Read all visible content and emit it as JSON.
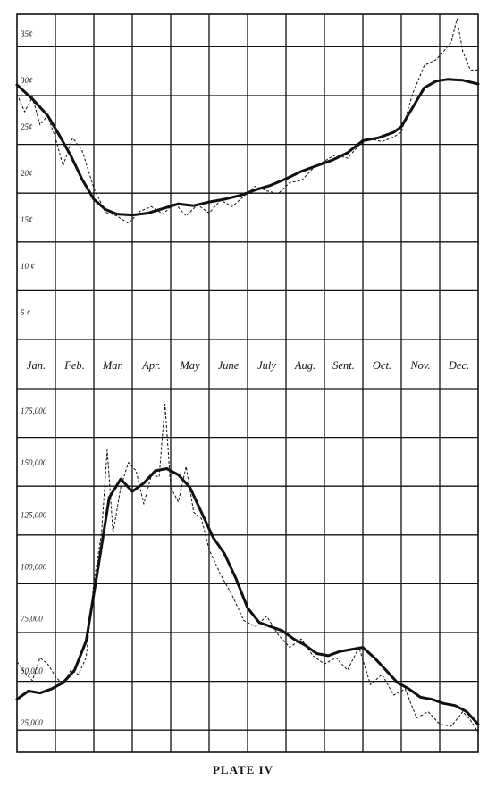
{
  "plate_caption": "PLATE IV",
  "months": [
    "Jan.",
    "Feb.",
    "Mar.",
    "Apr.",
    "May",
    "June",
    "July",
    "Aug.",
    "Sent.",
    "Oct.",
    "Nov.",
    "Dec."
  ],
  "chart_data": [
    {
      "type": "line",
      "title": "",
      "y_tick_labels": [
        "35¢",
        "30¢",
        "25¢",
        "20¢",
        "15¢",
        "10 ¢",
        "5 ¢"
      ],
      "y_ticks": [
        35,
        30,
        25,
        20,
        15,
        10,
        5
      ],
      "ylim": [
        2.5,
        37.5
      ],
      "xlim": [
        0,
        12
      ],
      "grid": true,
      "series": [
        {
          "style": "solid",
          "x": [
            0,
            0.4,
            0.8,
            1.1,
            1.4,
            1.7,
            2.0,
            2.3,
            2.6,
            3.0,
            3.4,
            3.8,
            4.2,
            4.6,
            5.0,
            5.4,
            5.8,
            6.2,
            6.6,
            7.0,
            7.4,
            7.8,
            8.2,
            8.6,
            9.0,
            9.4,
            9.8,
            10.0,
            10.3,
            10.6,
            10.9,
            11.2,
            11.6,
            12.0
          ],
          "values": [
            29.9,
            28.4,
            26.6,
            24.5,
            22.3,
            19.7,
            17.6,
            16.5,
            16.0,
            15.9,
            16.1,
            16.6,
            17.1,
            16.9,
            17.3,
            17.6,
            18.0,
            18.6,
            19.1,
            19.8,
            20.6,
            21.2,
            21.8,
            22.6,
            23.9,
            24.2,
            24.8,
            25.4,
            27.5,
            29.6,
            30.3,
            30.5,
            30.4,
            30.0
          ]
        },
        {
          "style": "dashed",
          "x": [
            0,
            0.2,
            0.4,
            0.6,
            0.8,
            1.0,
            1.2,
            1.45,
            1.7,
            2.0,
            2.3,
            2.6,
            2.9,
            3.2,
            3.5,
            3.8,
            4.1,
            4.4,
            4.7,
            5.0,
            5.3,
            5.6,
            5.9,
            6.2,
            6.5,
            6.8,
            7.1,
            7.4,
            7.7,
            8.0,
            8.3,
            8.6,
            8.9,
            9.2,
            9.5,
            9.8,
            10.0,
            10.3,
            10.6,
            10.9,
            11.1,
            11.3,
            11.45,
            11.6,
            11.8,
            12.0
          ],
          "values": [
            28.9,
            27.0,
            28.6,
            25.6,
            26.6,
            24.2,
            21.2,
            24.2,
            22.8,
            18.8,
            16.2,
            15.8,
            15.0,
            16.3,
            16.8,
            16.0,
            17.2,
            15.8,
            17.0,
            16.1,
            17.5,
            16.8,
            17.9,
            19.0,
            18.5,
            18.2,
            19.4,
            19.6,
            20.9,
            21.7,
            22.4,
            22.0,
            23.4,
            24.1,
            23.8,
            24.3,
            24.8,
            29.0,
            32.0,
            32.6,
            33.5,
            34.5,
            37.0,
            33.5,
            31.5,
            31.5
          ]
        }
      ]
    },
    {
      "type": "line",
      "title": "",
      "y_tick_labels": [
        "175,000",
        "150,000",
        "125,000",
        "100,000",
        "75,000",
        "50,000",
        "25,000"
      ],
      "y_ticks": [
        175000,
        150000,
        125000,
        100000,
        75000,
        50000,
        25000
      ],
      "ylim": [
        12500,
        187500
      ],
      "xlim": [
        0,
        12
      ],
      "grid": true,
      "series": [
        {
          "style": "solid",
          "x": [
            0,
            0.3,
            0.6,
            0.9,
            1.2,
            1.5,
            1.8,
            2.1,
            2.4,
            2.7,
            3.0,
            3.3,
            3.6,
            3.9,
            4.2,
            4.5,
            4.8,
            5.1,
            5.4,
            5.7,
            6.0,
            6.3,
            6.6,
            6.9,
            7.2,
            7.5,
            7.8,
            8.1,
            8.4,
            8.7,
            9.0,
            9.3,
            9.6,
            9.9,
            10.2,
            10.5,
            10.8,
            11.1,
            11.4,
            11.7,
            12.0
          ],
          "values": [
            38000,
            42000,
            41000,
            43000,
            46000,
            52000,
            66000,
            100000,
            135000,
            144000,
            138000,
            142000,
            148000,
            149000,
            146000,
            140000,
            128000,
            116000,
            108000,
            96000,
            82000,
            75000,
            73000,
            71000,
            67000,
            64000,
            60000,
            59000,
            61000,
            62000,
            63000,
            58000,
            52000,
            46000,
            43000,
            39000,
            38000,
            36000,
            35000,
            32000,
            26000
          ]
        },
        {
          "style": "dashed",
          "x": [
            0,
            0.2,
            0.4,
            0.6,
            0.8,
            1.0,
            1.2,
            1.4,
            1.6,
            1.8,
            2.0,
            2.2,
            2.35,
            2.5,
            2.7,
            2.9,
            3.1,
            3.3,
            3.5,
            3.7,
            3.85,
            4.0,
            4.2,
            4.4,
            4.6,
            4.8,
            5.0,
            5.3,
            5.6,
            5.9,
            6.2,
            6.5,
            6.8,
            7.1,
            7.4,
            7.7,
            8.0,
            8.3,
            8.6,
            8.9,
            9.2,
            9.5,
            9.8,
            10.1,
            10.4,
            10.7,
            11.0,
            11.3,
            11.6,
            11.8,
            12.0
          ],
          "values": [
            56000,
            51000,
            47000,
            58000,
            55000,
            49000,
            45000,
            52000,
            50000,
            58000,
            94000,
            118000,
            158000,
            118000,
            140000,
            152000,
            148000,
            132000,
            146000,
            145000,
            180000,
            140000,
            133000,
            150000,
            128000,
            125000,
            110000,
            98000,
            88000,
            76000,
            73000,
            78000,
            69000,
            63000,
            67000,
            59000,
            55000,
            58000,
            52000,
            63000,
            45000,
            50000,
            40000,
            43000,
            29000,
            32000,
            26000,
            25000,
            32000,
            28000,
            22000
          ]
        }
      ]
    }
  ]
}
